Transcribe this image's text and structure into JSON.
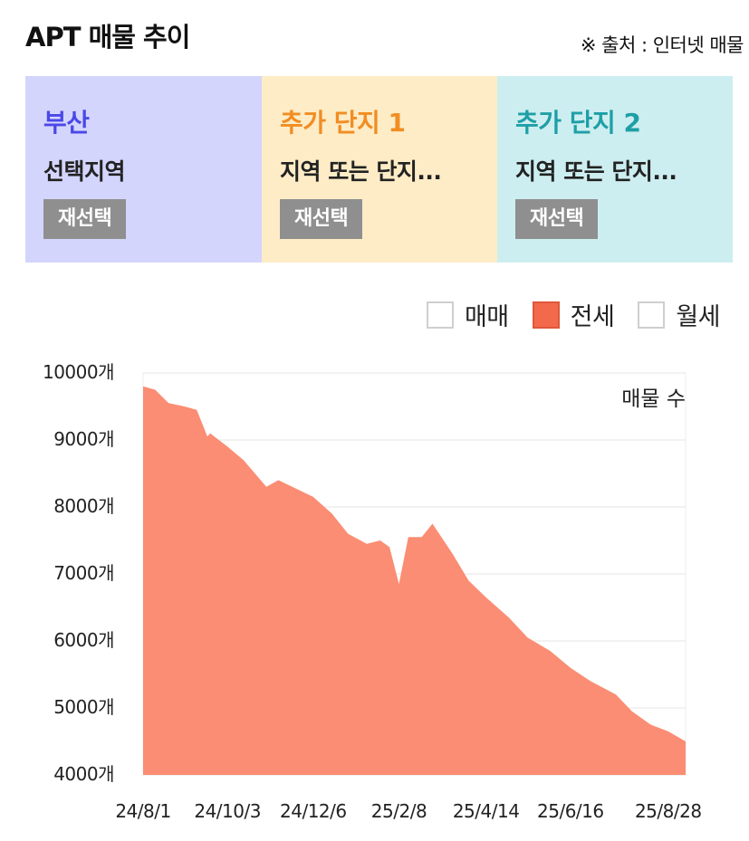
{
  "header": {
    "title": "APT 매물 추이",
    "source": "※ 출처 : 인터넷 매물"
  },
  "panels": [
    {
      "name": "부산",
      "sub": "선택지역",
      "button": "재선택",
      "bg": "#d4d5fc",
      "color": "#4a48e8"
    },
    {
      "name": "추가 단지 1",
      "sub": "지역 또는 단지...",
      "button": "재선택",
      "bg": "#fdecc6",
      "color": "#f18d22"
    },
    {
      "name": "추가 단지 2",
      "sub": "지역 또는 단지...",
      "button": "재선택",
      "bg": "#cdeef0",
      "color": "#1e9fa6"
    }
  ],
  "legend": [
    {
      "label": "매매",
      "checked": false
    },
    {
      "label": "전세",
      "checked": true
    },
    {
      "label": "월세",
      "checked": false
    }
  ],
  "chart_data": {
    "type": "area",
    "series_label": "매물 수",
    "y_unit": "개",
    "ylim": [
      4000,
      10000
    ],
    "y_ticks": [
      "10000개",
      "9000개",
      "8000개",
      "7000개",
      "6000개",
      "5000개",
      "4000개"
    ],
    "x_ticks": [
      "24/8/1",
      "24/10/3",
      "24/12/6",
      "25/2/8",
      "25/4/14",
      "25/6/16",
      "25/8/28"
    ],
    "grid": true,
    "fill_color": "#fa8d73",
    "series": [
      {
        "x": [
          "24/8/1",
          "24/8/10",
          "24/8/20",
          "24/9/1",
          "24/9/10",
          "24/9/18",
          "24/9/20",
          "24/10/3",
          "24/10/15",
          "24/11/1",
          "24/11/10",
          "24/12/6",
          "24/12/20",
          "25/1/1",
          "25/1/15",
          "25/1/25",
          "25/2/1",
          "25/2/8",
          "25/2/15",
          "25/2/25",
          "25/3/5",
          "25/3/20",
          "25/4/1",
          "25/4/14",
          "25/5/1",
          "25/5/15",
          "25/6/1",
          "25/6/16",
          "25/7/1",
          "25/7/20",
          "25/8/1",
          "25/8/15",
          "25/8/28",
          "25/9/10"
        ],
        "values": [
          9800,
          9750,
          9550,
          9500,
          9450,
          9050,
          9100,
          8900,
          8700,
          8300,
          8400,
          8150,
          7900,
          7600,
          7450,
          7500,
          7400,
          6850,
          7550,
          7550,
          7750,
          7300,
          6900,
          6650,
          6350,
          6050,
          5850,
          5600,
          5400,
          5200,
          4950,
          4750,
          4650,
          4500
        ]
      }
    ]
  }
}
